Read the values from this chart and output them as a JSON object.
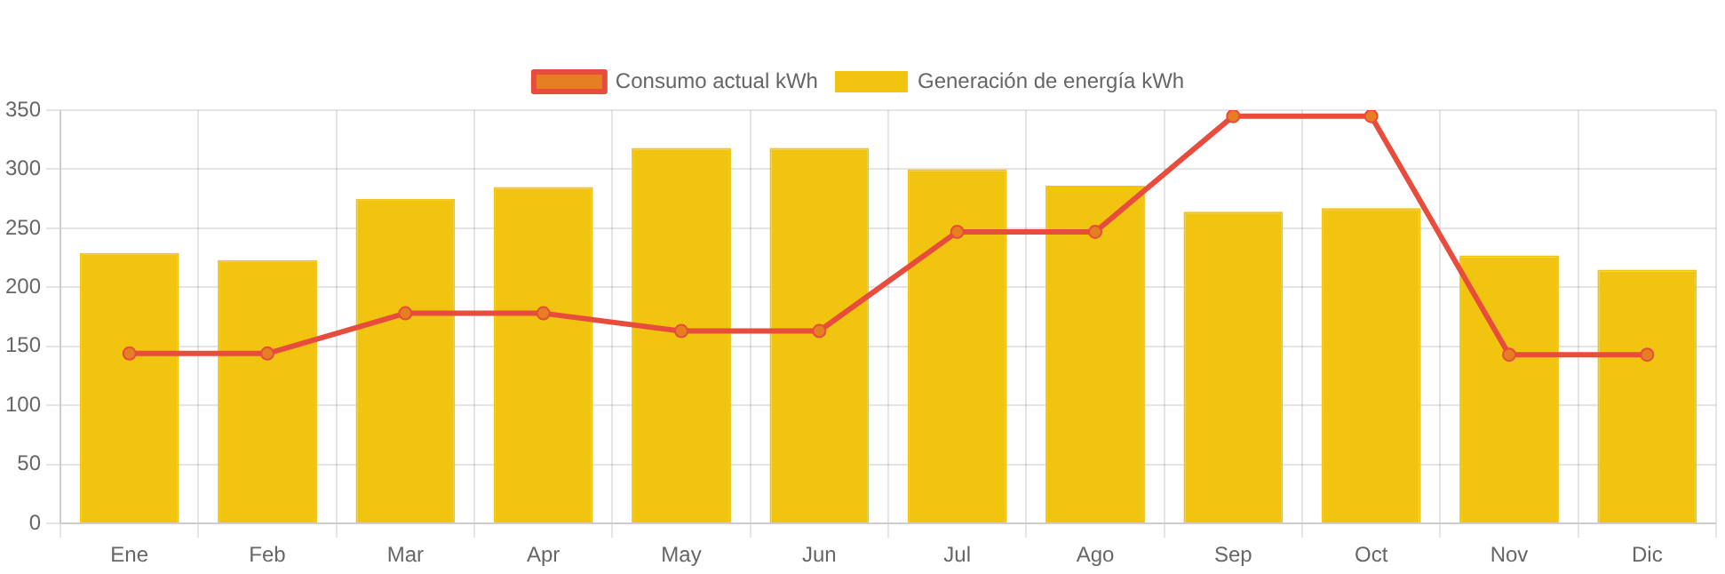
{
  "chart_data": {
    "type": "bar",
    "categories": [
      "Ene",
      "Feb",
      "Mar",
      "Apr",
      "May",
      "Jun",
      "Jul",
      "Ago",
      "Sep",
      "Oct",
      "Nov",
      "Dic"
    ],
    "series": [
      {
        "name": "Consumo actual kWh",
        "type": "line",
        "color": "#e74c3c",
        "values": [
          144,
          144,
          178,
          178,
          163,
          163,
          247,
          247,
          345,
          345,
          143,
          143
        ]
      },
      {
        "name": "Generación de energía kWh",
        "color": "#f1c40f",
        "values": [
          229,
          223,
          275,
          285,
          318,
          318,
          300,
          286,
          264,
          267,
          227,
          215
        ]
      }
    ],
    "ylim": [
      0,
      350
    ],
    "yticks": [
      0,
      50,
      100,
      150,
      200,
      250,
      300,
      350
    ],
    "grid": true,
    "legend": "top",
    "marker": "circle"
  }
}
